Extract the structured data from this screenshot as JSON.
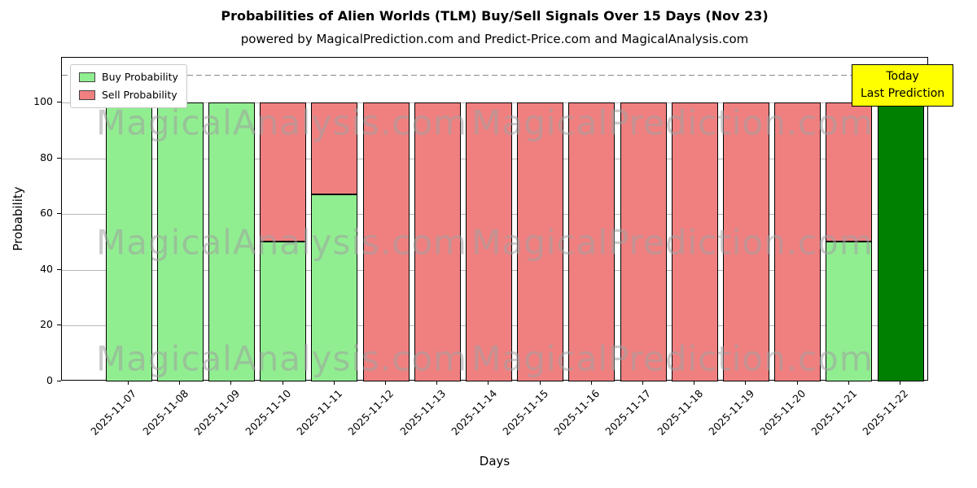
{
  "title": "Probabilities of Alien Worlds (TLM) Buy/Sell Signals Over 15 Days (Nov 23)",
  "subtitle": "powered by MagicalPrediction.com and Predict-Price.com and MagicalAnalysis.com",
  "legend": {
    "buy_label": "Buy Probability",
    "sell_label": "Sell Probability"
  },
  "annotation": {
    "line1": "Today",
    "line2": "Last Prediction"
  },
  "axes": {
    "xlabel": "Days",
    "ylabel": "Probability",
    "yticks": [
      0,
      20,
      40,
      60,
      80,
      100
    ],
    "ylim": [
      0,
      116
    ],
    "dashed_line_y": 110,
    "grid": "horizontal"
  },
  "colors": {
    "buy": "#90ee90",
    "sell": "#f08080",
    "today": "#008000",
    "annotation_bg": "#ffff00",
    "grid": "#b8b8b8",
    "dashed": "#8a8a8a"
  },
  "watermark": {
    "texts": [
      "MagicalAnalysis.com",
      "MagicalPrediction.com"
    ]
  },
  "chart_data": {
    "type": "bar",
    "stacked": true,
    "title": "Probabilities of Alien Worlds (TLM) Buy/Sell Signals Over 15 Days (Nov 23)",
    "xlabel": "Days",
    "ylabel": "Probability",
    "ylim": [
      0,
      116
    ],
    "legend_position": "upper left",
    "categories": [
      "2025-11-07",
      "2025-11-08",
      "2025-11-09",
      "2025-11-10",
      "2025-11-11",
      "2025-11-12",
      "2025-11-13",
      "2025-11-14",
      "2025-11-15",
      "2025-11-16",
      "2025-11-17",
      "2025-11-18",
      "2025-11-19",
      "2025-11-20",
      "2025-11-21",
      "2025-11-22"
    ],
    "series": [
      {
        "name": "Buy Probability",
        "color": "#90ee90",
        "values": [
          100,
          100,
          100,
          50,
          67,
          0,
          0,
          0,
          0,
          0,
          0,
          0,
          0,
          0,
          50,
          100
        ]
      },
      {
        "name": "Sell Probability",
        "color": "#f08080",
        "values": [
          0,
          0,
          0,
          50,
          33,
          100,
          100,
          100,
          100,
          100,
          100,
          100,
          100,
          100,
          50,
          0
        ]
      }
    ],
    "today_index": 15,
    "today_color": "#008000"
  }
}
